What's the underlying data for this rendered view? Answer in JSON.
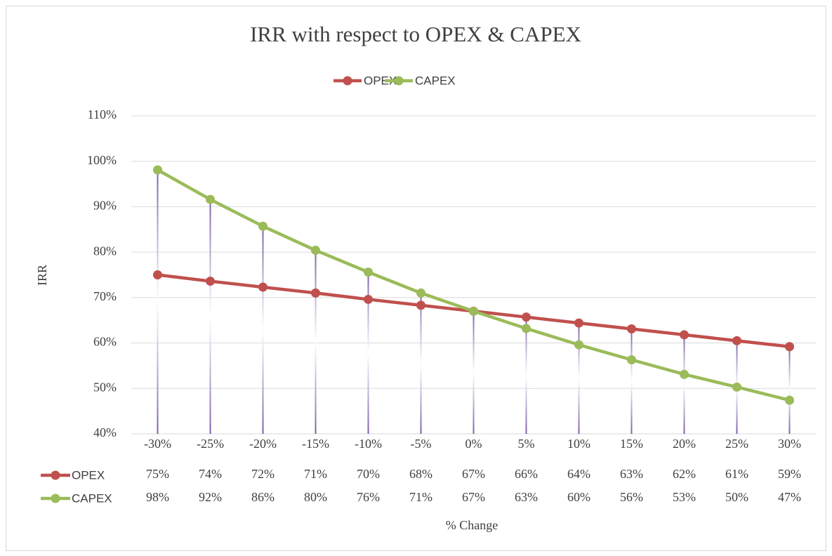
{
  "chart_data": {
    "type": "line",
    "title": "IRR with respect to OPEX & CAPEX",
    "x_label": "% Change",
    "y_label": "IRR",
    "categories": [
      "-30%",
      "-25%",
      "-20%",
      "-15%",
      "-10%",
      "-5%",
      "0%",
      "5%",
      "10%",
      "15%",
      "20%",
      "25%",
      "30%"
    ],
    "series": [
      {
        "name": "OPEX",
        "color": "#c0504d",
        "values": [
          75.0,
          73.6,
          72.3,
          71.0,
          69.6,
          68.3,
          67.0,
          65.7,
          64.4,
          63.1,
          61.8,
          60.5,
          59.2
        ],
        "value_labels": [
          "75%",
          "74%",
          "72%",
          "71%",
          "70%",
          "68%",
          "67%",
          "66%",
          "64%",
          "63%",
          "62%",
          "61%",
          "59%"
        ]
      },
      {
        "name": "CAPEX",
        "color": "#9bbb59",
        "values": [
          98.1,
          91.6,
          85.7,
          80.4,
          75.6,
          71.0,
          67.0,
          63.2,
          59.6,
          56.3,
          53.1,
          50.3,
          47.4
        ],
        "value_labels": [
          "98%",
          "92%",
          "86%",
          "80%",
          "76%",
          "71%",
          "67%",
          "63%",
          "60%",
          "56%",
          "53%",
          "50%",
          "47%"
        ]
      }
    ],
    "ylim": [
      40,
      110
    ],
    "yticks": [
      {
        "value": 40,
        "label": "40%"
      },
      {
        "value": 50,
        "label": "50%"
      },
      {
        "value": 60,
        "label": "60%"
      },
      {
        "value": 70,
        "label": "70%"
      },
      {
        "value": 80,
        "label": "80%"
      },
      {
        "value": 90,
        "label": "90%"
      },
      {
        "value": 100,
        "label": "100%"
      },
      {
        "value": 110,
        "label": "110%"
      }
    ],
    "grid": true,
    "drop_lines": true,
    "legend": "top",
    "data_table": true
  }
}
